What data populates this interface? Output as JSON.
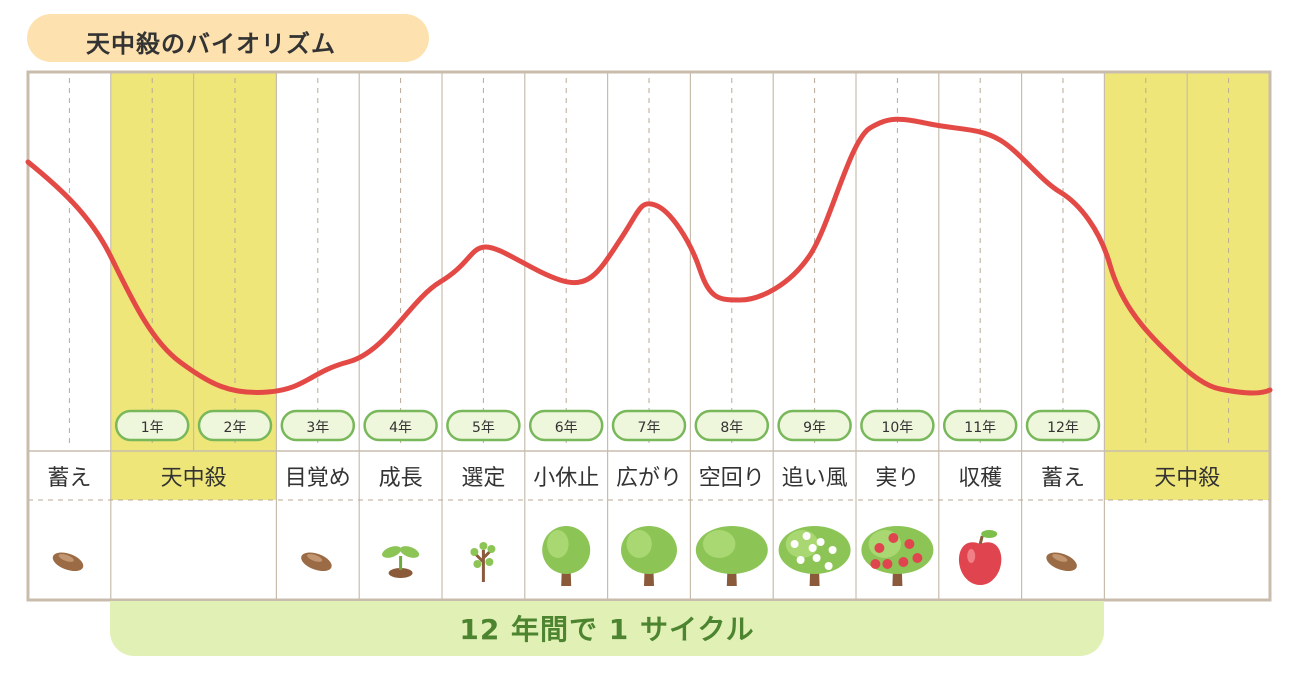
{
  "title": "天中殺のバイオリズム",
  "cycle_label": "12 年間で 1 サイクル",
  "colors": {
    "tenchusatsu_fill": "#efe679",
    "curve": "#e34a46",
    "border": "#c8bdad",
    "year_badge_fill": "#eef6dc",
    "year_badge_stroke": "#79b85a",
    "cycle_band": "#e1f1b6",
    "title_pill": "#fde2b0"
  },
  "year_badges": [
    "1年",
    "2年",
    "3年",
    "4年",
    "5年",
    "6年",
    "7年",
    "8年",
    "9年",
    "10年",
    "11年",
    "12年"
  ],
  "phases": [
    {
      "label": "蓄え",
      "icon": "seed-icon"
    },
    {
      "label": "天中殺",
      "icon": ""
    },
    {
      "label": "目覚め",
      "icon": "seed-icon"
    },
    {
      "label": "成長",
      "icon": "sprout-icon"
    },
    {
      "label": "選定",
      "icon": "sapling-icon"
    },
    {
      "label": "小休止",
      "icon": "small-tree-icon"
    },
    {
      "label": "広がり",
      "icon": "tree-icon"
    },
    {
      "label": "空回り",
      "icon": "wide-tree-icon"
    },
    {
      "label": "追い風",
      "icon": "blossom-tree-icon"
    },
    {
      "label": "実り",
      "icon": "fruit-tree-icon"
    },
    {
      "label": "収穫",
      "icon": "apple-icon"
    },
    {
      "label": "蓄え",
      "icon": "seed-icon"
    },
    {
      "label": "天中殺",
      "icon": ""
    }
  ]
}
